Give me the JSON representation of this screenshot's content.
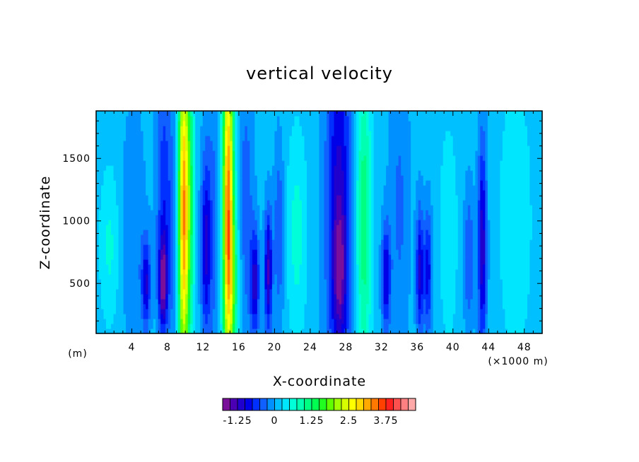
{
  "chart_data": {
    "type": "heatmap",
    "title": "vertical velocity",
    "xlabel": "X-coordinate",
    "ylabel": "Z-coordinate",
    "x_unit_left": "(m)",
    "x_unit_right": "(×1000 m)",
    "xlim": [
      0,
      50
    ],
    "ylim": [
      100,
      1880
    ],
    "x_ticks": [
      4,
      8,
      12,
      16,
      20,
      24,
      28,
      32,
      36,
      40,
      44,
      48
    ],
    "x_tick_labels": [
      "4",
      "8",
      "12",
      "16",
      "20",
      "24",
      "28",
      "32",
      "36",
      "40",
      "44",
      "48"
    ],
    "y_ticks": [
      500,
      1000,
      1500
    ],
    "y_tick_labels": [
      "500",
      "1000",
      "1500"
    ],
    "colorbar": {
      "min": -1.75,
      "step": 0.25,
      "tick_values": [
        -1.25,
        0,
        1.25,
        2.5,
        3.75
      ],
      "tick_labels": [
        "-1.25",
        "0",
        "1.25",
        "2.5",
        "3.75"
      ],
      "colors": [
        "#7a0f9a",
        "#4b00b4",
        "#2000cc",
        "#0000e8",
        "#0030ff",
        "#1060ff",
        "#0090ff",
        "#00c0ff",
        "#00e6ff",
        "#00ffd8",
        "#00ffb0",
        "#00ff80",
        "#00ff50",
        "#20ff20",
        "#60ff00",
        "#a0ff00",
        "#d8ff00",
        "#ffff00",
        "#ffd800",
        "#ffa800",
        "#ff7800",
        "#ff4000",
        "#ff2020",
        "#ff5050",
        "#ff8080",
        "#ffa8a8"
      ]
    },
    "background_value": 0.1,
    "features": [
      {
        "x": 1.5,
        "z": 800,
        "sx": 0.8,
        "sz": 450,
        "w": 0.45
      },
      {
        "x": 4.2,
        "z": 900,
        "sx": 0.9,
        "sz": 700,
        "w": -0.35
      },
      {
        "x": 5.6,
        "z": 500,
        "sx": 0.35,
        "sz": 250,
        "w": -1.1
      },
      {
        "x": 7.5,
        "z": 500,
        "sx": 0.35,
        "sz": 250,
        "w": -1.5
      },
      {
        "x": 7.6,
        "z": 1200,
        "sx": 0.6,
        "sz": 700,
        "w": -0.8
      },
      {
        "x": 8.9,
        "z": 800,
        "sx": 0.5,
        "sz": 900,
        "w": -0.4
      },
      {
        "x": 9.8,
        "z": 1050,
        "sx": 0.45,
        "sz": 1000,
        "w": 3.2
      },
      {
        "x": 10.6,
        "z": 1200,
        "sx": 0.35,
        "sz": 800,
        "w": 0.8
      },
      {
        "x": 12.3,
        "z": 800,
        "sx": 0.4,
        "sz": 500,
        "w": -1.1
      },
      {
        "x": 13.2,
        "z": 1000,
        "sx": 0.6,
        "sz": 900,
        "w": -0.4
      },
      {
        "x": 14.8,
        "z": 1100,
        "sx": 0.45,
        "sz": 1000,
        "w": 3.3
      },
      {
        "x": 15.4,
        "z": 500,
        "sx": 0.5,
        "sz": 400,
        "w": 0.8
      },
      {
        "x": 16.8,
        "z": 1100,
        "sx": 0.6,
        "sz": 800,
        "w": -0.5
      },
      {
        "x": 17.8,
        "z": 500,
        "sx": 0.35,
        "sz": 300,
        "w": -1.2
      },
      {
        "x": 19.3,
        "z": 600,
        "sx": 0.3,
        "sz": 350,
        "w": -1.4
      },
      {
        "x": 20.5,
        "z": 900,
        "sx": 0.4,
        "sz": 500,
        "w": -0.6
      },
      {
        "x": 22.5,
        "z": 900,
        "sx": 0.8,
        "sz": 600,
        "w": 0.5
      },
      {
        "x": 27.2,
        "z": 1100,
        "sx": 1.0,
        "sz": 1200,
        "w": -1.2
      },
      {
        "x": 27.3,
        "z": 600,
        "sx": 0.5,
        "sz": 350,
        "w": -0.8
      },
      {
        "x": 30.0,
        "z": 1000,
        "sx": 0.6,
        "sz": 900,
        "w": 1.1
      },
      {
        "x": 32.5,
        "z": 550,
        "sx": 0.35,
        "sz": 300,
        "w": -1.1
      },
      {
        "x": 34.0,
        "z": 1100,
        "sx": 0.8,
        "sz": 800,
        "w": -0.4
      },
      {
        "x": 36.3,
        "z": 600,
        "sx": 0.3,
        "sz": 350,
        "w": -1.2
      },
      {
        "x": 37.2,
        "z": 600,
        "sx": 0.3,
        "sz": 350,
        "w": -1.0
      },
      {
        "x": 39.5,
        "z": 900,
        "sx": 0.7,
        "sz": 600,
        "w": 0.4
      },
      {
        "x": 41.8,
        "z": 700,
        "sx": 0.4,
        "sz": 400,
        "w": -0.6
      },
      {
        "x": 43.3,
        "z": 800,
        "sx": 0.35,
        "sz": 600,
        "w": -1.3
      },
      {
        "x": 47.0,
        "z": 1000,
        "sx": 1.5,
        "sz": 900,
        "w": 0.3
      }
    ]
  }
}
